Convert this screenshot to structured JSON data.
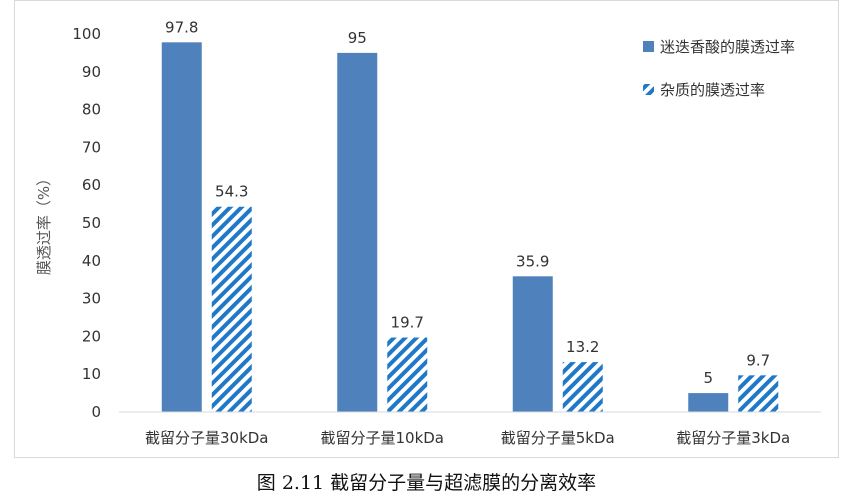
{
  "chart_data": {
    "type": "bar",
    "categories": [
      "截留分子量30kDa",
      "截留分子量10kDa",
      "截留分子量5kDa",
      "截留分子量3kDa"
    ],
    "series": [
      {
        "name": "迷迭香酸的膜透过率",
        "values": [
          97.8,
          95,
          35.9,
          5
        ],
        "color": "#4f81bd",
        "fill": "solid"
      },
      {
        "name": "杂质的膜透过率",
        "values": [
          54.3,
          19.7,
          13.2,
          9.7
        ],
        "color": "#1f78c8",
        "fill": "diagonal-hatch"
      }
    ],
    "ylabel": "膜透过率（%）",
    "xlabel": "",
    "ylim": [
      0,
      100
    ],
    "yticks": [
      0,
      10,
      20,
      30,
      40,
      50,
      60,
      70,
      80,
      90,
      100
    ],
    "grid": false,
    "legend": "top-right",
    "data_labels": true
  },
  "caption": "图 2.11 截留分子量与超滤膜的分离效率"
}
